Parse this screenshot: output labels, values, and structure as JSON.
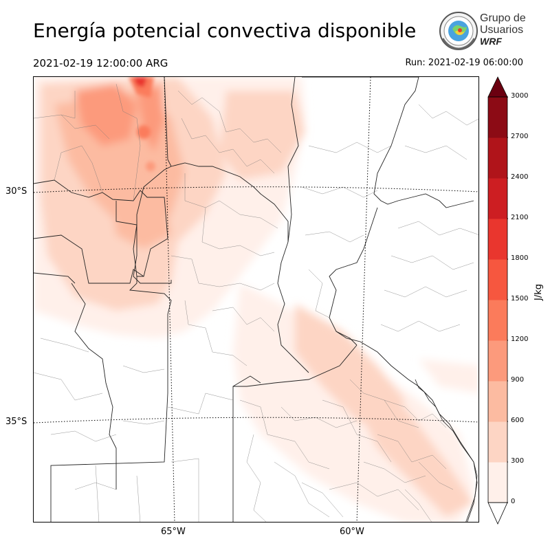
{
  "header": {
    "title": "Energía potencial convectiva disponible",
    "valid_time": "2021-02-19 12:00:00 ARG",
    "run_time": "Run: 2021-02-19 06:00:00"
  },
  "logo": {
    "line1": "Grupo de",
    "line2": "Usuarios",
    "line3": "WRF"
  },
  "map": {
    "lat_labels": [
      "30°S",
      "35°S"
    ],
    "lon_labels": [
      "65°W",
      "60°W"
    ],
    "field": "CAPE",
    "shading_palette": [
      "#fff0ea",
      "#fdd5c4",
      "#fcbba1",
      "#fc9a7c",
      "#fb7b5b",
      "#f6573f",
      "#e9362e",
      "#cd1e22",
      "#b0141a",
      "#8c0b15",
      "#6b0010"
    ]
  },
  "colorbar": {
    "unit": "J/kg",
    "ticks": [
      "0",
      "300",
      "600",
      "900",
      "1200",
      "1500",
      "1800",
      "2100",
      "2400",
      "2700",
      "3000"
    ],
    "colors": [
      "#fff0ea",
      "#fdd5c4",
      "#fcbba1",
      "#fc9a7c",
      "#fb7b5b",
      "#f6573f",
      "#e9362e",
      "#cd1e22",
      "#b0141a",
      "#8c0b15"
    ],
    "extend_min_color": "#ffffff",
    "extend_max_color": "#6b0010"
  }
}
